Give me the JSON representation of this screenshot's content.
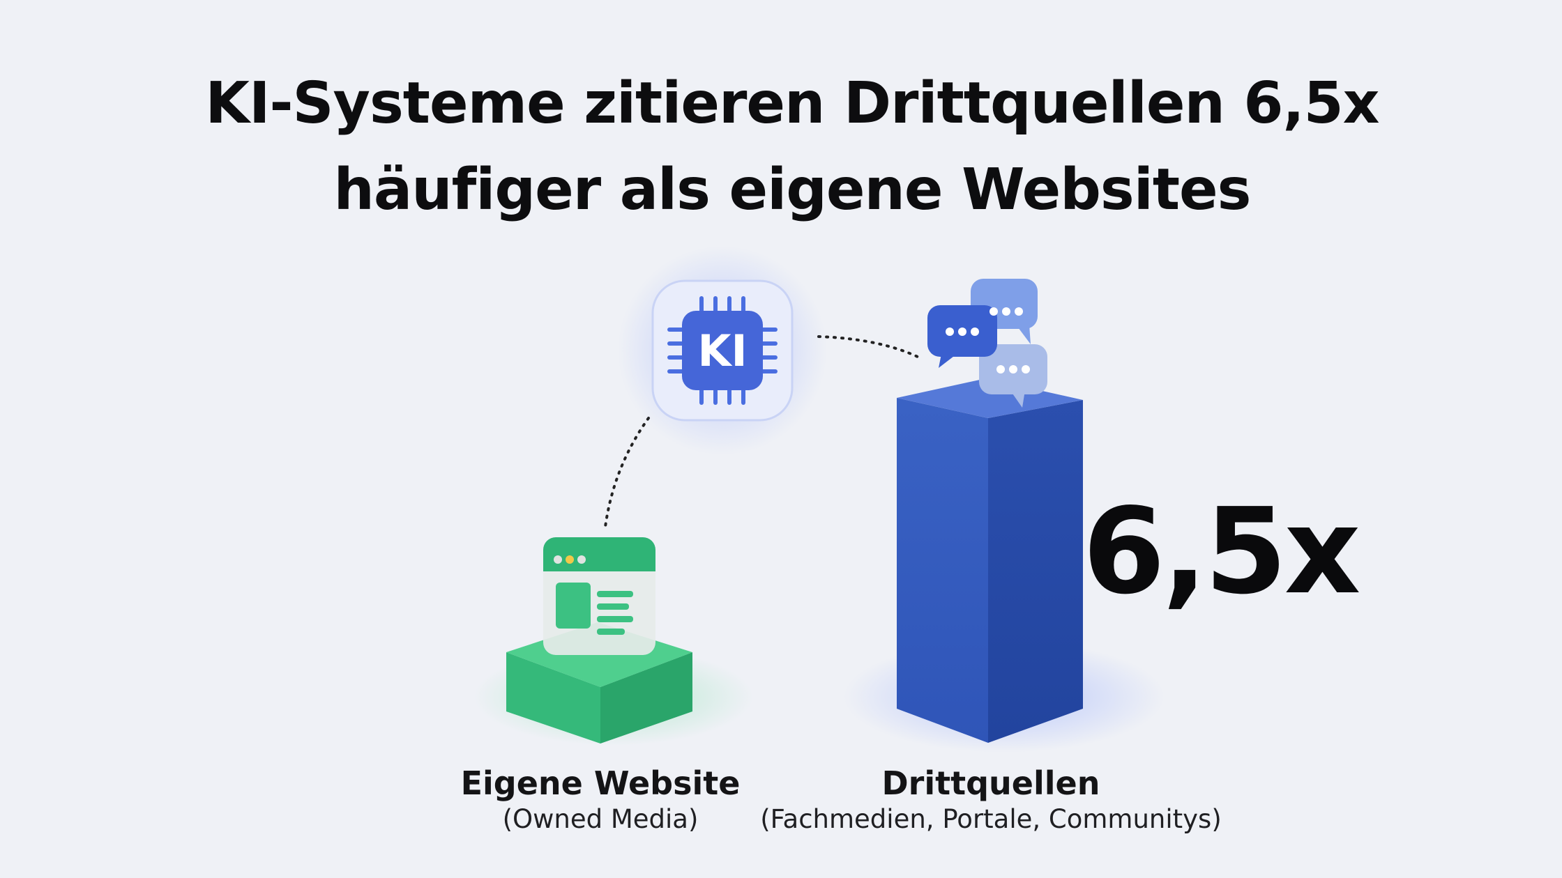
{
  "title": [
    "KI-Systeme zitieren Drittquellen 6,5x",
    "häufiger als eigene Websites"
  ],
  "center_icon": {
    "label": "KI"
  },
  "items": [
    {
      "label": "Eigene Website",
      "sublabel": "(Owned Media)"
    },
    {
      "label": "Drittquellen",
      "sublabel": "(Fachmedien, Portale, Communitys)"
    }
  ],
  "highlight": "6,5x"
}
